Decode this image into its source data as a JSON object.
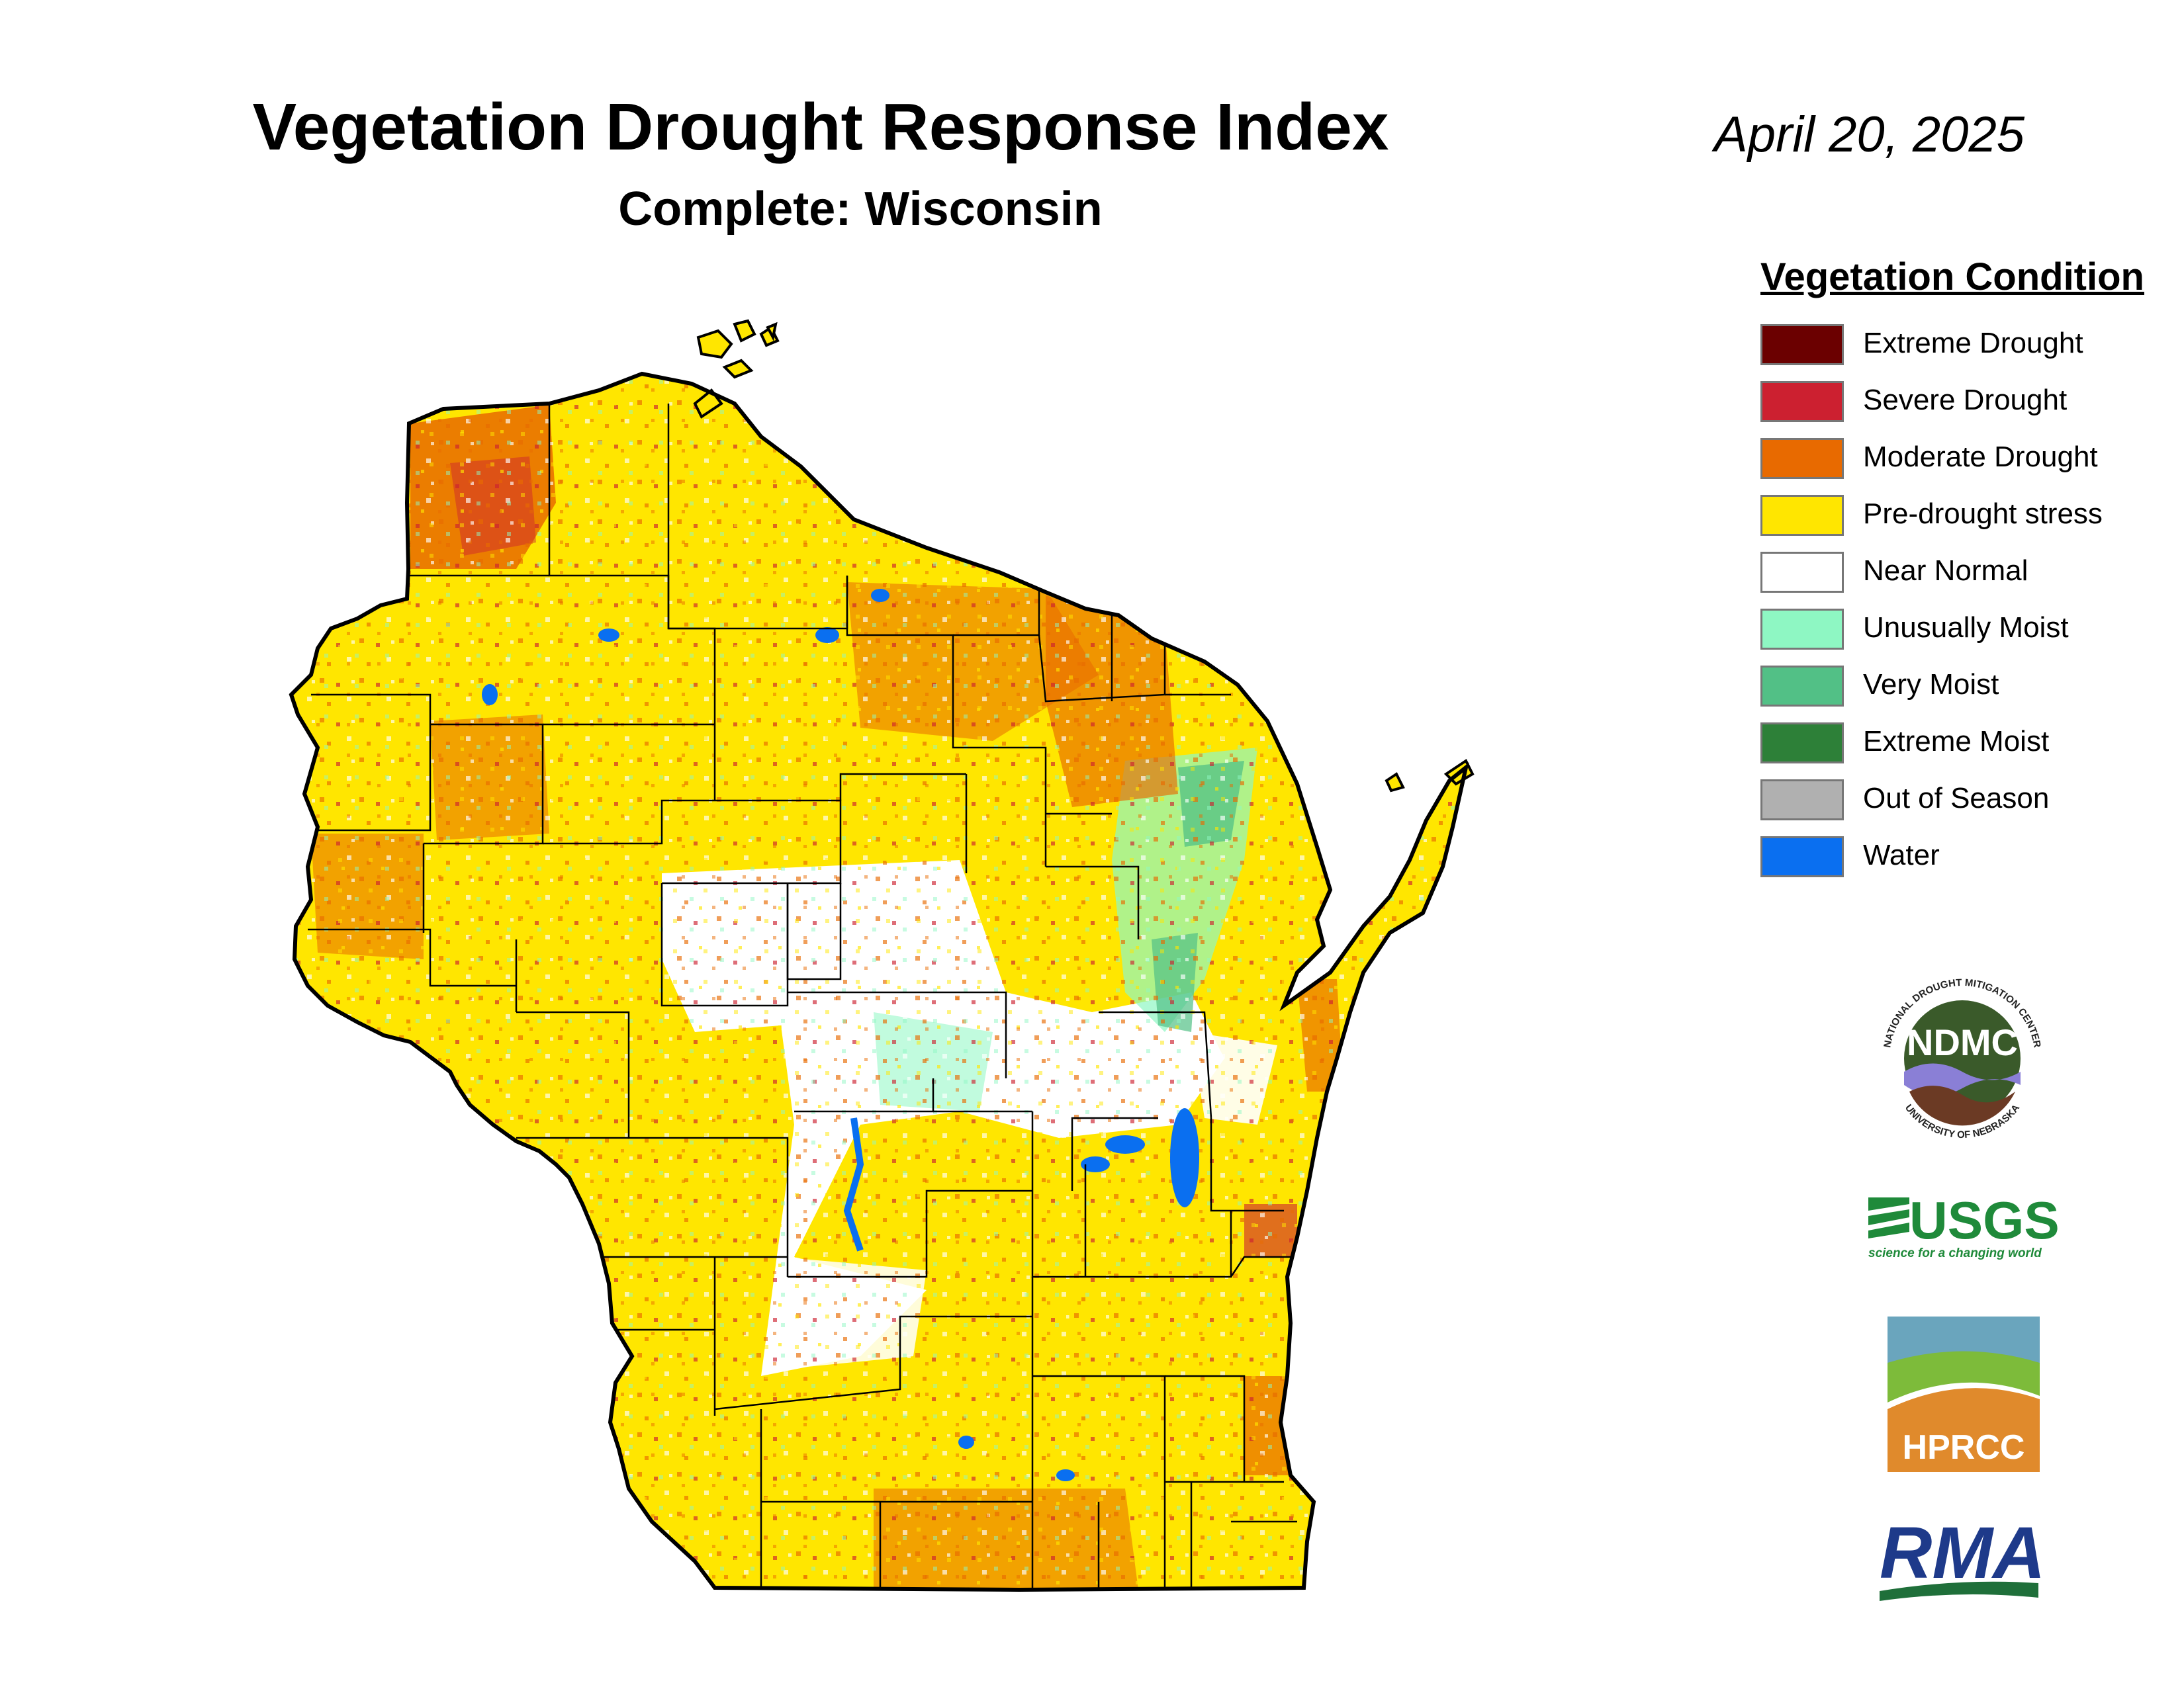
{
  "title": "Vegetation Drought Response Index",
  "subtitle": "Complete: Wisconsin",
  "date": "April 20, 2025",
  "legend": {
    "title": "Vegetation Condition",
    "items": [
      {
        "label": "Extreme Drought",
        "color": "#6b0000"
      },
      {
        "label": "Severe Drought",
        "color": "#cc2030"
      },
      {
        "label": "Moderate Drought",
        "color": "#e86a00"
      },
      {
        "label": "Pre-drought stress",
        "color": "#ffe600"
      },
      {
        "label": "Near Normal",
        "color": "#ffffff"
      },
      {
        "label": "Unusually Moist",
        "color": "#8ef7c3"
      },
      {
        "label": "Very Moist",
        "color": "#52c086"
      },
      {
        "label": "Extreme Moist",
        "color": "#2d8038"
      },
      {
        "label": "Out of Season",
        "color": "#b0b0b0"
      },
      {
        "label": "Water",
        "color": "#0a6ff0"
      }
    ]
  },
  "logos": {
    "ndmc": {
      "abbr": "NDMC",
      "ring_top": "NATIONAL DROUGHT MITIGATION CENTER",
      "ring_bottom": "UNIVERSITY OF NEBRASKA"
    },
    "usgs": {
      "abbr": "USGS",
      "tagline": "science for a changing world"
    },
    "hprcc": {
      "abbr": "HPRCC"
    },
    "rma": {
      "abbr": "RMA"
    }
  }
}
